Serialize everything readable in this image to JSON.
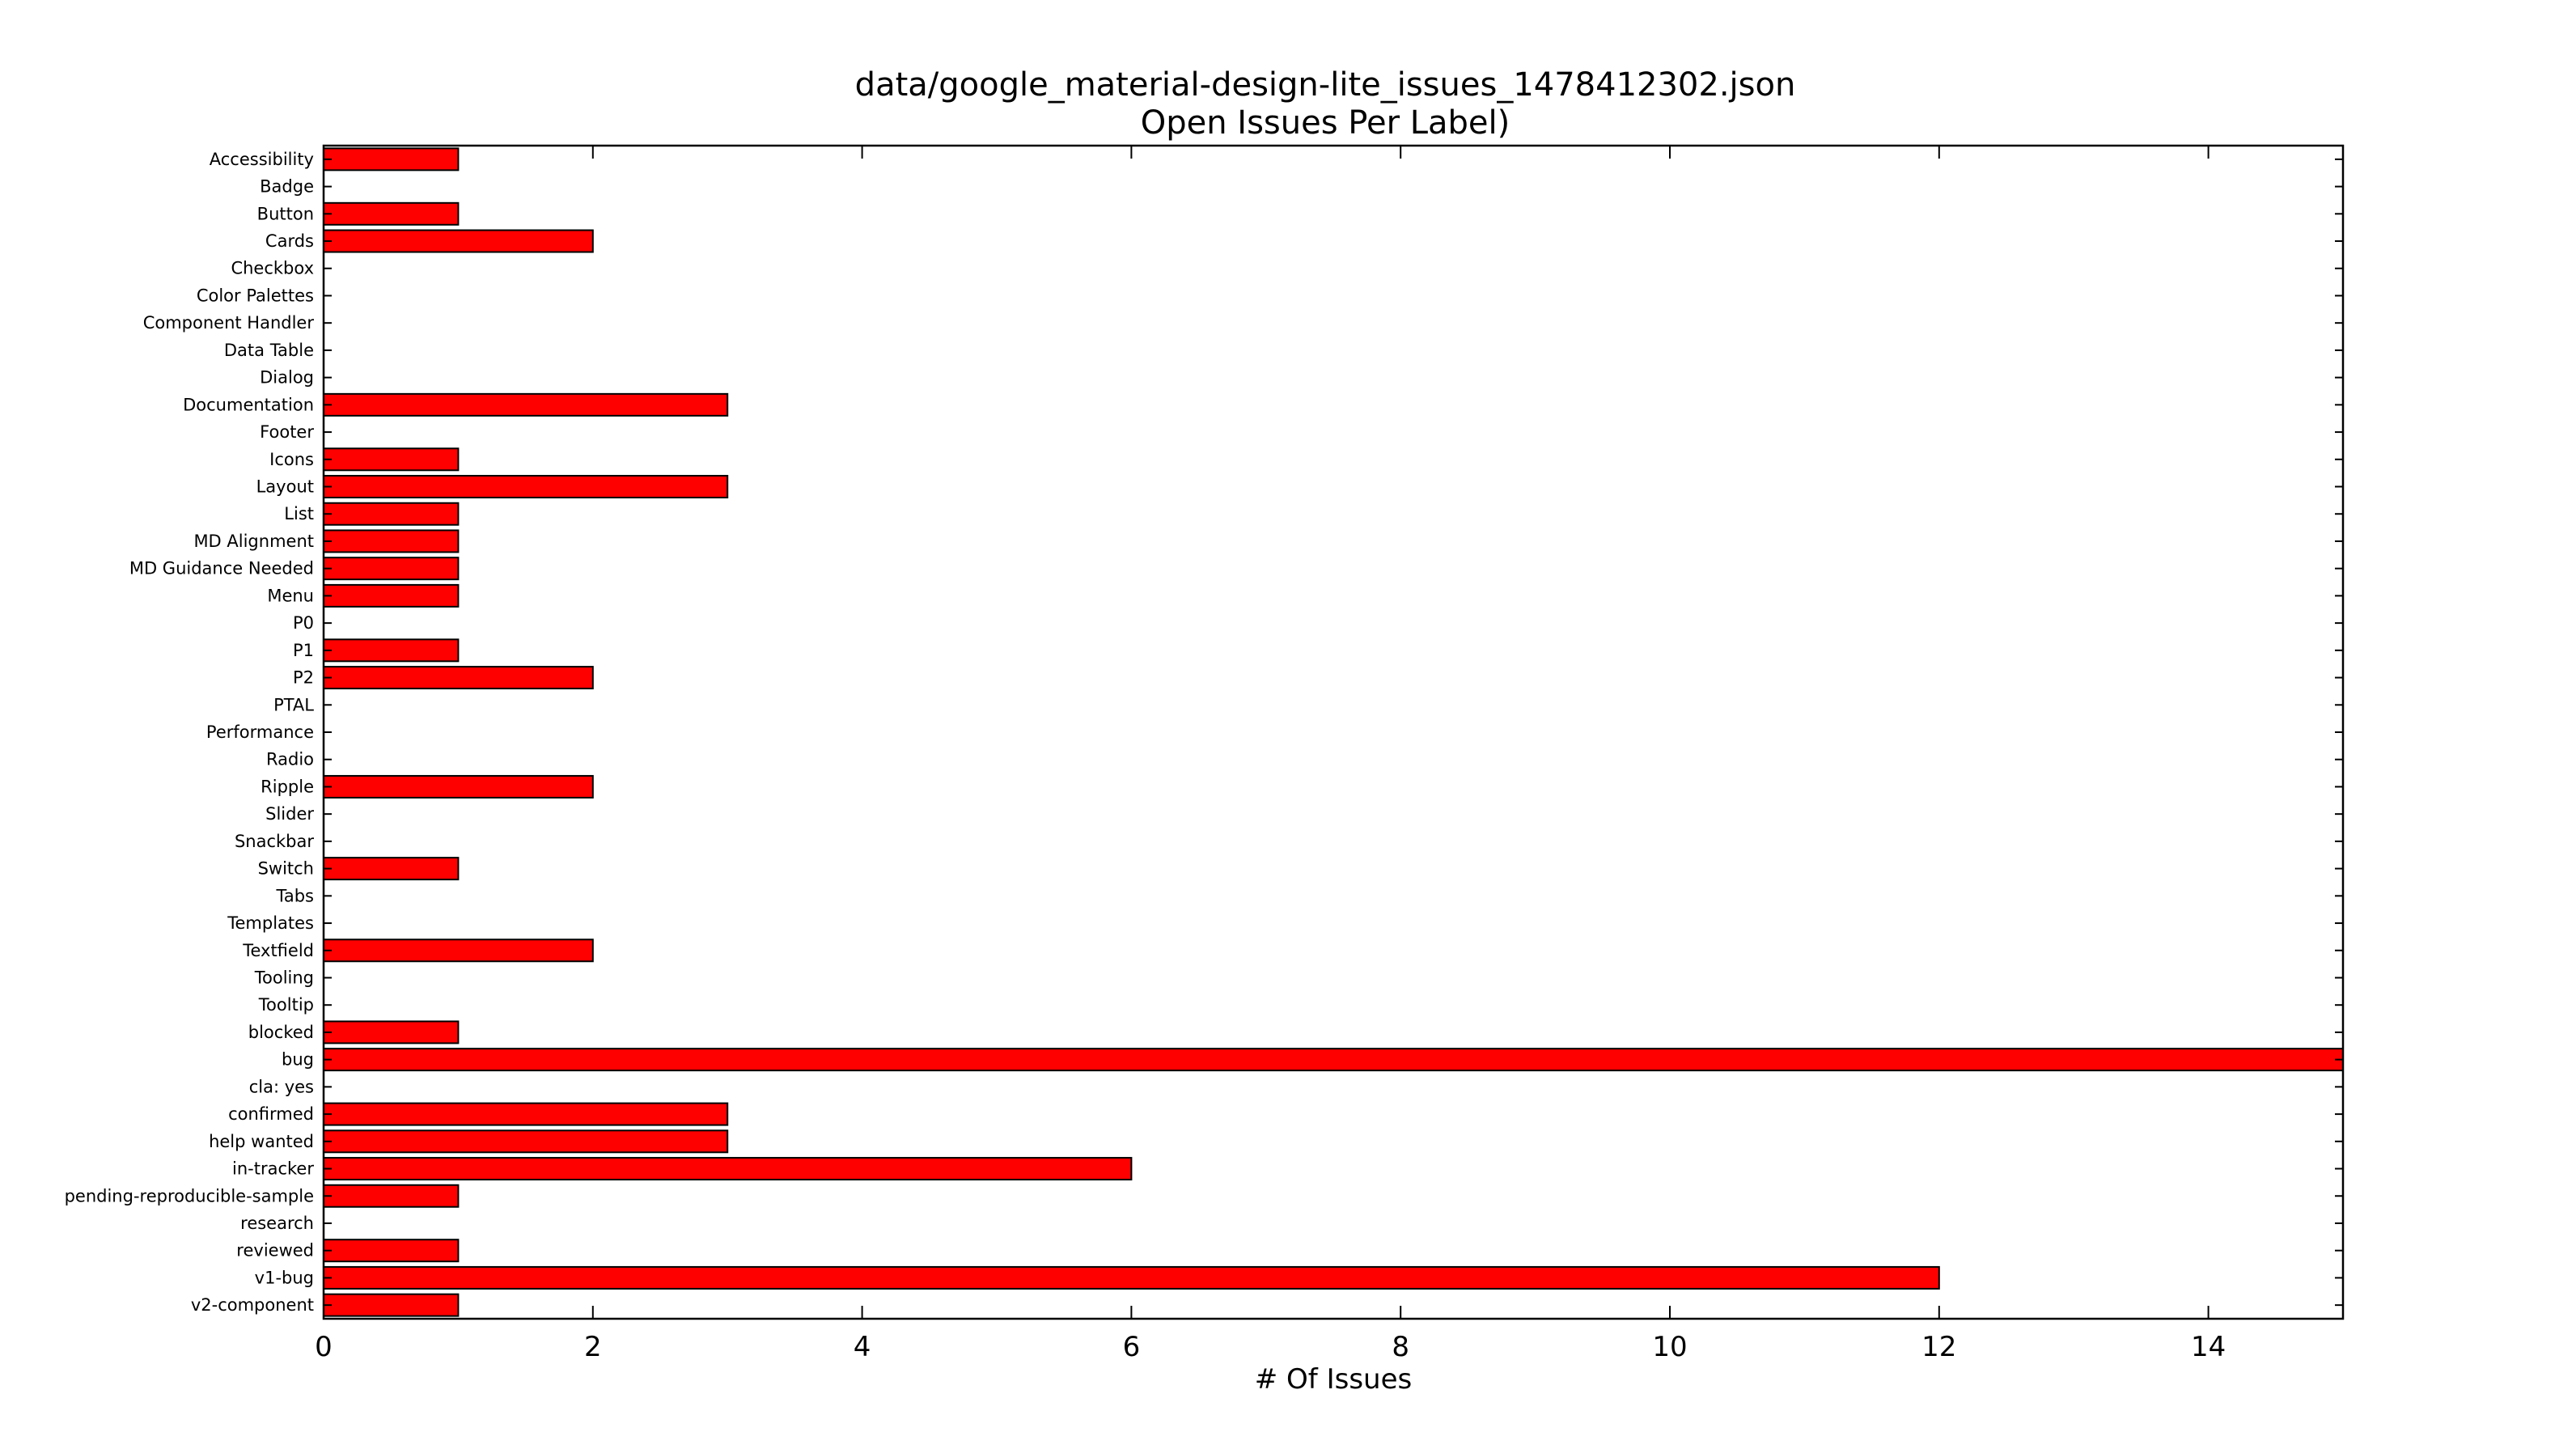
{
  "chart_data": {
    "type": "bar",
    "orientation": "horizontal",
    "title": "data/google_material-design-lite_issues_1478412302.json",
    "subtitle": "Open Issues Per Label)",
    "xlabel": "# Of Issues",
    "ylabel": "",
    "xlim": [
      0,
      15
    ],
    "xticks": [
      0,
      2,
      4,
      6,
      8,
      10,
      12,
      14
    ],
    "grid": false,
    "legend": "none",
    "bar_color": "#ff0000",
    "bar_edge_color": "#000000",
    "categories": [
      "Accessibility",
      "Badge",
      "Button",
      "Cards",
      "Checkbox",
      "Color Palettes",
      "Component Handler",
      "Data Table",
      "Dialog",
      "Documentation",
      "Footer",
      "Icons",
      "Layout",
      "List",
      "MD Alignment",
      "MD Guidance Needed",
      "Menu",
      "P0",
      "P1",
      "P2",
      "PTAL",
      "Performance",
      "Radio",
      "Ripple",
      "Slider",
      "Snackbar",
      "Switch",
      "Tabs",
      "Templates",
      "Textfield",
      "Tooling",
      "Tooltip",
      "blocked",
      "bug",
      "cla: yes",
      "confirmed",
      "help wanted",
      "in-tracker",
      "pending-reproducible-sample",
      "research",
      "reviewed",
      "v1-bug",
      "v2-component"
    ],
    "values": [
      1,
      0,
      1,
      2,
      0,
      0,
      0,
      0,
      0,
      3,
      0,
      1,
      3,
      1,
      1,
      1,
      1,
      0,
      1,
      2,
      0,
      0,
      0,
      2,
      0,
      0,
      1,
      0,
      0,
      2,
      0,
      0,
      1,
      15,
      0,
      3,
      3,
      6,
      1,
      0,
      1,
      12,
      1
    ]
  }
}
